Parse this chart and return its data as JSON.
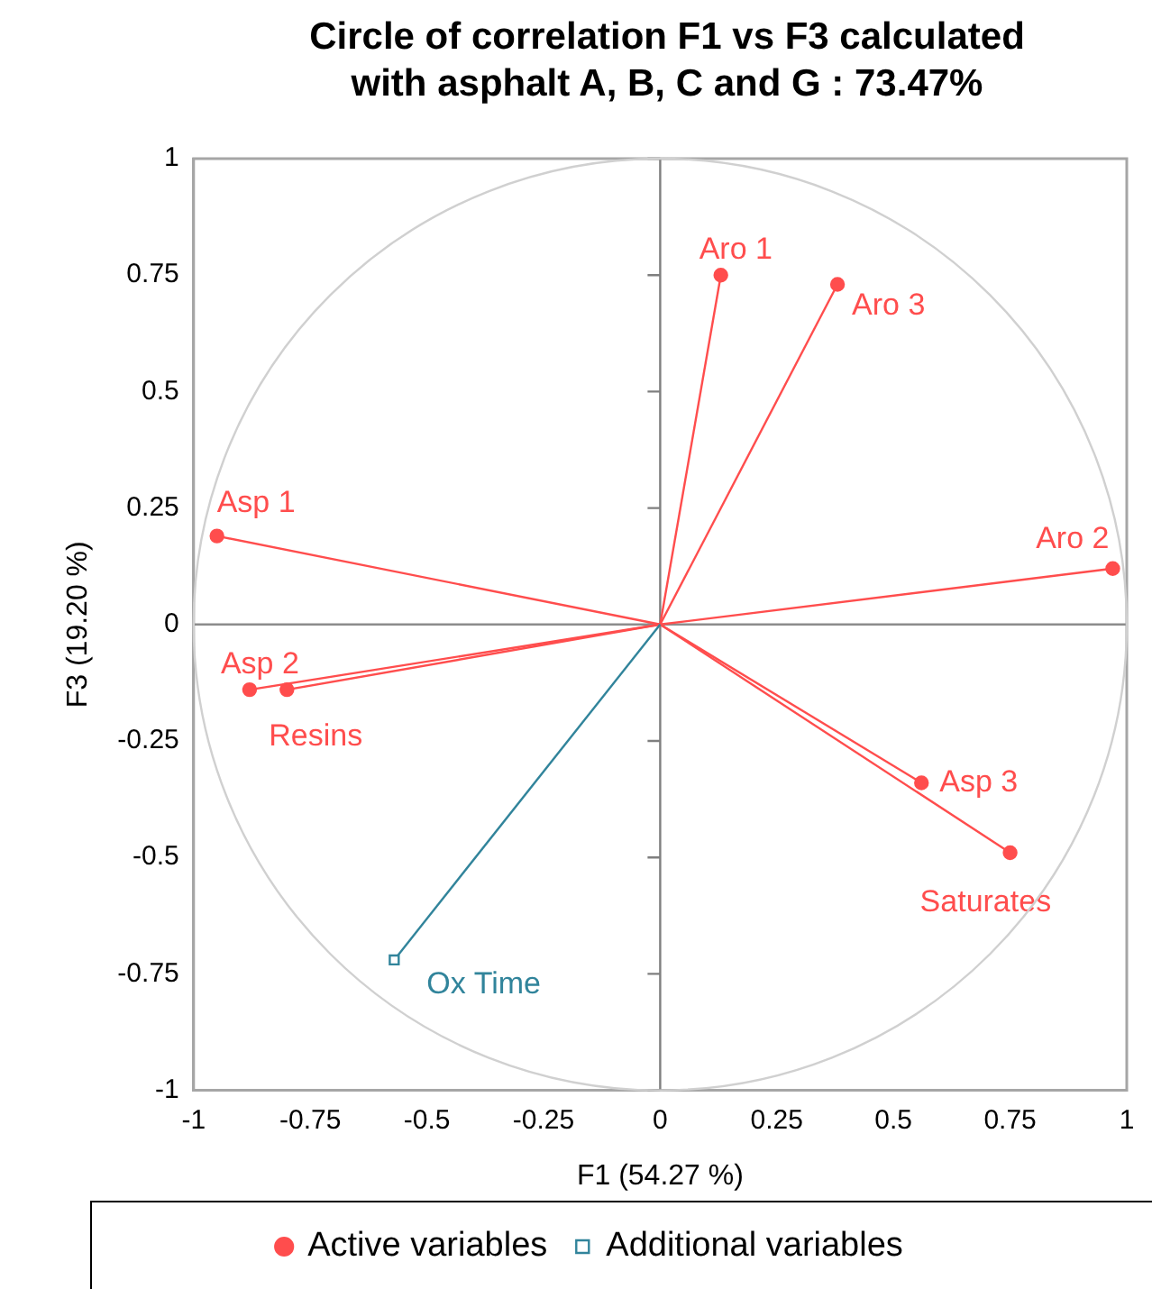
{
  "chart_data": {
    "type": "scatter",
    "title": "Circle of correlation F1 vs F3 calculated with asphalt A, B, C and G : 73.47%",
    "xlabel": "F1 (54.27 %)",
    "ylabel": "F3 (19.20 %)",
    "xlim": [
      -1,
      1
    ],
    "ylim": [
      -1,
      1
    ],
    "xticks": [
      -1,
      -0.75,
      -0.5,
      -0.25,
      0,
      0.25,
      0.5,
      0.75,
      1
    ],
    "yticks": [
      -1,
      -0.75,
      -0.5,
      -0.25,
      0,
      0.25,
      0.5,
      0.75,
      1
    ],
    "grid": false,
    "legend": "bottom",
    "ref_lines": [
      {
        "axis": "x",
        "value": 0,
        "color": "#7f7f7f"
      },
      {
        "axis": "y",
        "value": 0,
        "color": "#8c8c8c"
      }
    ],
    "series": [
      {
        "name": "Active variables",
        "color": "#ff4d4d",
        "marker": "circle",
        "x": [
          0.13,
          0.38,
          0.97,
          -0.95,
          -0.88,
          -0.8,
          0.56,
          0.75
        ],
        "values": [
          0.75,
          0.73,
          0.12,
          0.19,
          -0.14,
          -0.14,
          -0.34,
          -0.49
        ]
      },
      {
        "name": "Additional variables",
        "color": "#31849b",
        "marker": "square",
        "x": [
          -0.57
        ],
        "values": [
          -0.72
        ]
      }
    ],
    "annotations": [
      {
        "text": "Aro 1",
        "x": 0.13,
        "y": 0.75
      },
      {
        "text": "Aro 3",
        "x": 0.38,
        "y": 0.73
      },
      {
        "text": "Aro 2",
        "x": 0.97,
        "y": 0.12
      },
      {
        "text": "Asp 1",
        "x": -0.95,
        "y": 0.19
      },
      {
        "text": "Asp 2",
        "x": -0.88,
        "y": -0.14
      },
      {
        "text": "Resins",
        "x": -0.8,
        "y": -0.14
      },
      {
        "text": "Asp 3",
        "x": 0.56,
        "y": -0.34
      },
      {
        "text": "Saturates",
        "x": 0.75,
        "y": -0.49
      },
      {
        "text": "Ox Time",
        "x": -0.57,
        "y": -0.72
      }
    ]
  }
}
